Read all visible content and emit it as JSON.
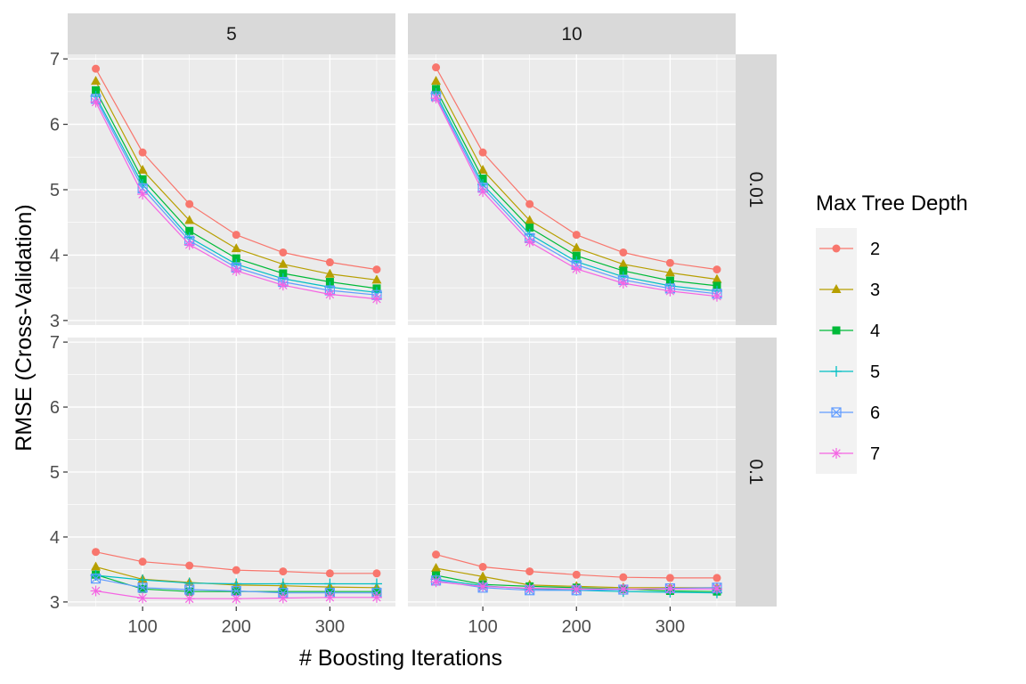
{
  "chart_data": {
    "type": "line",
    "xlabel": "# Boosting Iterations",
    "ylabel": "RMSE (Cross-Validation)",
    "x": [
      50,
      100,
      150,
      200,
      250,
      300,
      350
    ],
    "xlim": [
      20,
      370
    ],
    "ylim": [
      2.93,
      7.07
    ],
    "x_ticks": [
      100,
      200,
      300
    ],
    "y_ticks": [
      3,
      4,
      5,
      6,
      7
    ],
    "grid": true,
    "legend": {
      "title": "Max Tree Depth",
      "position": "right",
      "entries": [
        {
          "label": "2",
          "color": "#F8766D",
          "shape": "circle"
        },
        {
          "label": "3",
          "color": "#B79F00",
          "shape": "triangle"
        },
        {
          "label": "4",
          "color": "#00BA38",
          "shape": "square"
        },
        {
          "label": "5",
          "color": "#00BFC4",
          "shape": "plus"
        },
        {
          "label": "6",
          "color": "#619CFF",
          "shape": "boxed-x"
        },
        {
          "label": "7",
          "color": "#F564E3",
          "shape": "star"
        }
      ]
    },
    "facet_columns": [
      "5",
      "10"
    ],
    "facet_rows": [
      "0.01",
      "0.1"
    ],
    "panels": [
      {
        "col": "5",
        "row": "0.01",
        "series": [
          {
            "name": "2",
            "values": [
              6.85,
              5.57,
              4.78,
              4.31,
              4.04,
              3.89,
              3.78
            ]
          },
          {
            "name": "3",
            "values": [
              6.66,
              5.3,
              4.53,
              4.1,
              3.86,
              3.71,
              3.62
            ]
          },
          {
            "name": "4",
            "values": [
              6.52,
              5.16,
              4.37,
              3.95,
              3.72,
              3.59,
              3.49
            ]
          },
          {
            "name": "5",
            "values": [
              6.43,
              5.08,
              4.27,
              3.86,
              3.64,
              3.51,
              3.43
            ]
          },
          {
            "name": "6",
            "values": [
              6.39,
              5.02,
              4.22,
              3.81,
              3.59,
              3.46,
              3.39
            ]
          },
          {
            "name": "7",
            "values": [
              6.34,
              4.93,
              4.16,
              3.76,
              3.54,
              3.4,
              3.33
            ]
          }
        ]
      },
      {
        "col": "10",
        "row": "0.01",
        "series": [
          {
            "name": "2",
            "values": [
              6.87,
              5.57,
              4.78,
              4.31,
              4.04,
              3.88,
              3.78
            ]
          },
          {
            "name": "3",
            "values": [
              6.66,
              5.3,
              4.53,
              4.11,
              3.86,
              3.73,
              3.63
            ]
          },
          {
            "name": "4",
            "values": [
              6.54,
              5.17,
              4.42,
              3.99,
              3.76,
              3.61,
              3.53
            ]
          },
          {
            "name": "5",
            "values": [
              6.47,
              5.08,
              4.32,
              3.9,
              3.67,
              3.53,
              3.45
            ]
          },
          {
            "name": "6",
            "values": [
              6.43,
              5.03,
              4.26,
              3.85,
              3.62,
              3.49,
              3.41
            ]
          },
          {
            "name": "7",
            "values": [
              6.4,
              4.97,
              4.2,
              3.79,
              3.57,
              3.45,
              3.37
            ]
          }
        ]
      },
      {
        "col": "5",
        "row": "0.1",
        "series": [
          {
            "name": "2",
            "values": [
              3.77,
              3.62,
              3.56,
              3.49,
              3.47,
              3.44,
              3.44
            ]
          },
          {
            "name": "3",
            "values": [
              3.54,
              3.35,
              3.3,
              3.26,
              3.25,
              3.23,
              3.22
            ]
          },
          {
            "name": "4",
            "values": [
              3.42,
              3.2,
              3.16,
              3.16,
              3.16,
              3.16,
              3.16
            ]
          },
          {
            "name": "5",
            "values": [
              3.41,
              3.34,
              3.29,
              3.28,
              3.28,
              3.28,
              3.28
            ]
          },
          {
            "name": "6",
            "values": [
              3.36,
              3.22,
              3.19,
              3.17,
              3.14,
              3.14,
              3.14
            ]
          },
          {
            "name": "7",
            "values": [
              3.17,
              3.06,
              3.05,
              3.05,
              3.06,
              3.07,
              3.07
            ]
          }
        ]
      },
      {
        "col": "10",
        "row": "0.1",
        "series": [
          {
            "name": "2",
            "values": [
              3.73,
              3.54,
              3.47,
              3.42,
              3.38,
              3.37,
              3.37
            ]
          },
          {
            "name": "3",
            "values": [
              3.52,
              3.39,
              3.26,
              3.24,
              3.22,
              3.22,
              3.22
            ]
          },
          {
            "name": "4",
            "values": [
              3.41,
              3.27,
              3.24,
              3.22,
              3.2,
              3.17,
              3.16
            ]
          },
          {
            "name": "5",
            "values": [
              3.35,
              3.25,
              3.2,
              3.18,
              3.16,
              3.15,
              3.14
            ]
          },
          {
            "name": "6",
            "values": [
              3.33,
              3.22,
              3.18,
              3.18,
              3.19,
              3.21,
              3.22
            ]
          },
          {
            "name": "7",
            "values": [
              3.31,
              3.24,
              3.21,
              3.2,
              3.2,
              3.2,
              3.2
            ]
          }
        ]
      }
    ]
  }
}
